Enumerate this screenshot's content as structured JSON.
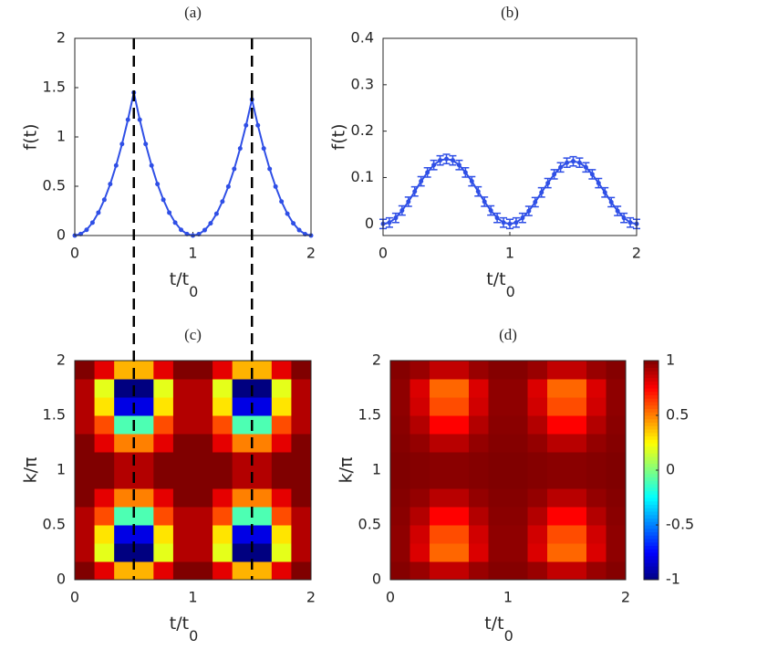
{
  "chart_data": [
    {
      "type": "line",
      "title": "(a)",
      "ylabel": "f(t)",
      "xlabel": {
        "text": "t/t",
        "sub": "0"
      },
      "color": "#2f4fe6",
      "xlim": [
        0,
        2
      ],
      "ylim": [
        0,
        2
      ],
      "xticks": [
        0,
        1,
        2
      ],
      "yticks": [
        0,
        0.5,
        1,
        1.5,
        2
      ],
      "vlines": [
        0.5,
        1.5
      ],
      "x": [
        0,
        0.05,
        0.1,
        0.15,
        0.2,
        0.25,
        0.3,
        0.35,
        0.4,
        0.45,
        0.5,
        0.55,
        0.6,
        0.65,
        0.7,
        0.75,
        0.8,
        0.85,
        0.9,
        0.95,
        1,
        1.05,
        1.1,
        1.15,
        1.2,
        1.25,
        1.3,
        1.35,
        1.4,
        1.45,
        1.5,
        1.55,
        1.6,
        1.65,
        1.7,
        1.75,
        1.8,
        1.85,
        1.9,
        1.95,
        2
      ],
      "values": [
        0,
        0.015,
        0.058,
        0.131,
        0.232,
        0.363,
        0.522,
        0.711,
        0.928,
        1.175,
        1.45,
        1.175,
        0.928,
        0.711,
        0.522,
        0.363,
        0.232,
        0.131,
        0.058,
        0.015,
        0,
        0.014,
        0.055,
        0.124,
        0.221,
        0.345,
        0.497,
        0.676,
        0.883,
        1.118,
        1.38,
        1.118,
        0.883,
        0.676,
        0.497,
        0.345,
        0.221,
        0.124,
        0.055,
        0.014,
        0
      ]
    },
    {
      "type": "line",
      "title": "(b)",
      "ylabel": "f(t)",
      "xlabel": {
        "text": "t/t",
        "sub": "0"
      },
      "color": "#2f4fe6",
      "xlim": [
        0,
        2
      ],
      "ylim": [
        -0.025,
        0.4
      ],
      "xticks": [
        0,
        1,
        2
      ],
      "yticks": [
        0,
        0.1,
        0.2,
        0.3,
        0.4
      ],
      "x": [
        0,
        0.05,
        0.1,
        0.15,
        0.2,
        0.25,
        0.3,
        0.35,
        0.4,
        0.45,
        0.5,
        0.55,
        0.6,
        0.65,
        0.7,
        0.75,
        0.8,
        0.85,
        0.9,
        0.95,
        1,
        1.05,
        1.1,
        1.15,
        1.2,
        1.25,
        1.3,
        1.35,
        1.4,
        1.45,
        1.5,
        1.55,
        1.6,
        1.65,
        1.7,
        1.75,
        1.8,
        1.85,
        1.9,
        1.95,
        2
      ],
      "values": [
        0,
        0.003,
        0.013,
        0.029,
        0.048,
        0.07,
        0.092,
        0.111,
        0.127,
        0.137,
        0.14,
        0.137,
        0.127,
        0.111,
        0.092,
        0.07,
        0.048,
        0.029,
        0.013,
        0.003,
        0,
        0.003,
        0.013,
        0.028,
        0.047,
        0.068,
        0.088,
        0.107,
        0.122,
        0.132,
        0.135,
        0.132,
        0.122,
        0.107,
        0.088,
        0.068,
        0.047,
        0.028,
        0.013,
        0.003,
        0
      ],
      "errors": [
        0.01,
        0.01,
        0.01,
        0.01,
        0.01,
        0.01,
        0.01,
        0.01,
        0.01,
        0.01,
        0.01,
        0.01,
        0.01,
        0.01,
        0.01,
        0.01,
        0.01,
        0.01,
        0.01,
        0.01,
        0.01,
        0.01,
        0.01,
        0.01,
        0.01,
        0.01,
        0.01,
        0.01,
        0.01,
        0.01,
        0.01,
        0.01,
        0.01,
        0.01,
        0.01,
        0.01,
        0.01,
        0.01,
        0.01,
        0.01,
        0.01
      ]
    },
    {
      "type": "heatmap",
      "title": "(c)",
      "ylabel": "k/π",
      "xlabel": {
        "text": "t/t",
        "sub": "0"
      },
      "colormap": "jet",
      "clim": [
        -1,
        1
      ],
      "xlim": [
        0,
        2
      ],
      "ylim": [
        0,
        2
      ],
      "xticks": [
        0,
        1,
        2
      ],
      "yticks": [
        0,
        0.5,
        1,
        1.5,
        2
      ],
      "z": [
        [
          1,
          0.8,
          0.4,
          0.4,
          0.8,
          1,
          1,
          0.8,
          0.4,
          0.4,
          0.8,
          1
        ],
        [
          0.9,
          0.2,
          -1,
          -1,
          0.2,
          0.9,
          0.9,
          0.2,
          -1,
          -1,
          0.2,
          0.9
        ],
        [
          0.9,
          0.3,
          -0.8,
          -0.8,
          0.3,
          0.9,
          0.9,
          0.3,
          -0.8,
          -0.8,
          0.3,
          0.9
        ],
        [
          0.9,
          0.6,
          -0.1,
          -0.1,
          0.6,
          0.9,
          0.9,
          0.6,
          -0.1,
          -0.1,
          0.6,
          0.9
        ],
        [
          1,
          0.8,
          0.5,
          0.5,
          0.8,
          1,
          1,
          0.8,
          0.5,
          0.5,
          0.8,
          1
        ],
        [
          1,
          1,
          0.9,
          0.9,
          1,
          1,
          1,
          1,
          0.9,
          0.9,
          1,
          1
        ],
        [
          1,
          1,
          0.9,
          0.9,
          1,
          1,
          1,
          1,
          0.9,
          0.9,
          1,
          1
        ],
        [
          1,
          0.8,
          0.5,
          0.5,
          0.8,
          1,
          1,
          0.8,
          0.5,
          0.5,
          0.8,
          1
        ],
        [
          0.9,
          0.6,
          -0.1,
          -0.1,
          0.6,
          0.9,
          0.9,
          0.6,
          -0.1,
          -0.1,
          0.6,
          0.9
        ],
        [
          0.9,
          0.3,
          -0.8,
          -0.8,
          0.3,
          0.9,
          0.9,
          0.3,
          -0.8,
          -0.8,
          0.3,
          0.9
        ],
        [
          0.9,
          0.2,
          -1,
          -1,
          0.2,
          0.9,
          0.9,
          0.2,
          -1,
          -1,
          0.2,
          0.9
        ],
        [
          1,
          0.8,
          0.4,
          0.4,
          0.8,
          1,
          1,
          0.8,
          0.4,
          0.4,
          0.8,
          1
        ]
      ]
    },
    {
      "type": "heatmap",
      "title": "(d)",
      "ylabel": "k/π",
      "xlabel": {
        "text": "t/t",
        "sub": "0"
      },
      "colormap": "jet",
      "clim": [
        -1,
        1
      ],
      "xlim": [
        0,
        2
      ],
      "ylim": [
        0,
        2
      ],
      "xticks": [
        0,
        1,
        2
      ],
      "yticks": [
        0,
        0.5,
        1,
        1.5,
        2
      ],
      "colorbar": true,
      "cticks": [
        -1,
        -0.5,
        0,
        0.5,
        1
      ],
      "z": [
        [
          0.99,
          0.95,
          0.87,
          0.87,
          0.95,
          0.99,
          0.99,
          0.95,
          0.87,
          0.87,
          0.95,
          0.99
        ],
        [
          0.97,
          0.82,
          0.55,
          0.55,
          0.82,
          0.97,
          0.97,
          0.82,
          0.55,
          0.55,
          0.82,
          0.97
        ],
        [
          0.97,
          0.84,
          0.6,
          0.6,
          0.84,
          0.97,
          0.97,
          0.84,
          0.6,
          0.6,
          0.84,
          0.97
        ],
        [
          0.98,
          0.9,
          0.75,
          0.75,
          0.9,
          0.98,
          0.98,
          0.9,
          0.75,
          0.75,
          0.9,
          0.98
        ],
        [
          0.99,
          0.96,
          0.89,
          0.89,
          0.96,
          0.99,
          0.99,
          0.96,
          0.89,
          0.89,
          0.96,
          0.99
        ],
        [
          1,
          0.99,
          0.98,
          0.98,
          0.99,
          1,
          1,
          0.99,
          0.98,
          0.98,
          0.99,
          1
        ],
        [
          1,
          0.99,
          0.98,
          0.98,
          0.99,
          1,
          1,
          0.99,
          0.98,
          0.98,
          0.99,
          1
        ],
        [
          0.99,
          0.96,
          0.89,
          0.89,
          0.96,
          0.99,
          0.99,
          0.96,
          0.89,
          0.89,
          0.96,
          0.99
        ],
        [
          0.98,
          0.9,
          0.75,
          0.75,
          0.9,
          0.98,
          0.98,
          0.9,
          0.75,
          0.75,
          0.9,
          0.98
        ],
        [
          0.97,
          0.84,
          0.6,
          0.6,
          0.84,
          0.97,
          0.97,
          0.84,
          0.6,
          0.6,
          0.84,
          0.97
        ],
        [
          0.97,
          0.82,
          0.55,
          0.55,
          0.82,
          0.97,
          0.97,
          0.82,
          0.55,
          0.55,
          0.82,
          0.97
        ],
        [
          0.99,
          0.95,
          0.87,
          0.87,
          0.95,
          0.99,
          0.99,
          0.95,
          0.87,
          0.87,
          0.95,
          0.99
        ]
      ]
    }
  ]
}
